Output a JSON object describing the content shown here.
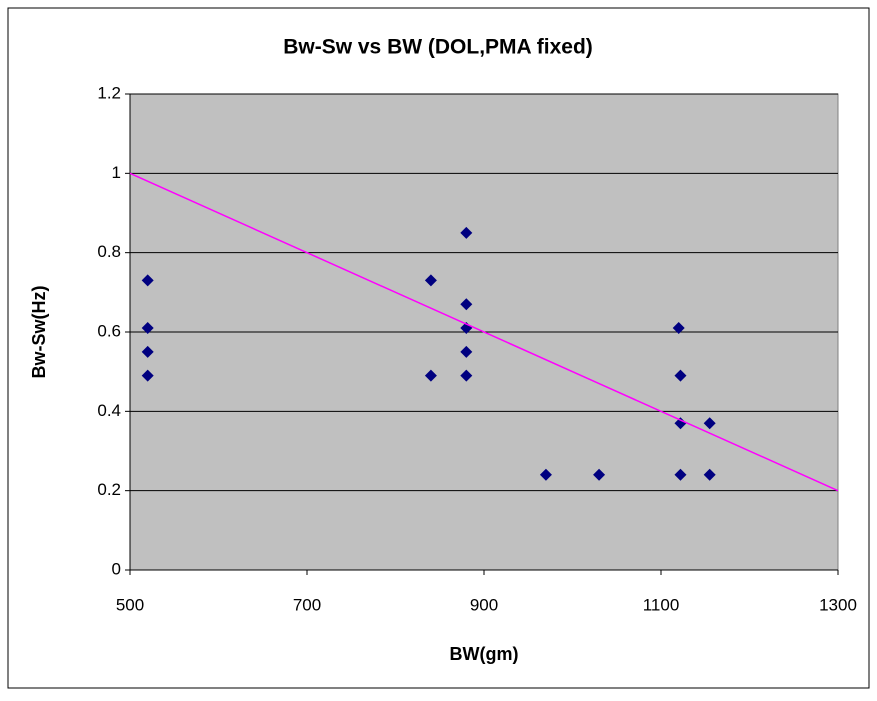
{
  "chart_data": {
    "type": "scatter",
    "title": "Bw-Sw vs BW (DOL,PMA fixed)",
    "x_label": "BW(gm)",
    "y_label": "Bw-Sw(Hz)",
    "series": [
      {
        "color": "#000080",
        "x": [
          520,
          520,
          520,
          520,
          840,
          840,
          880,
          880,
          880,
          880,
          880,
          970,
          1030,
          1120,
          1122,
          1122,
          1122,
          1155,
          1155
        ],
        "values": [
          0.73,
          0.61,
          0.55,
          0.49,
          0.73,
          0.49,
          0.85,
          0.67,
          0.61,
          0.55,
          0.49,
          0.24,
          0.24,
          0.61,
          0.49,
          0.37,
          0.24,
          0.37,
          0.24
        ]
      }
    ],
    "trendline": {
      "x": [
        500,
        1300
      ],
      "values": [
        1,
        0.2
      ],
      "color": "#ff00ff"
    },
    "xlim": [
      500,
      1300
    ],
    "xticks": [
      500,
      700,
      900,
      1100,
      1300
    ],
    "ylim": [
      0,
      1.2
    ],
    "yticks": [
      0,
      0.2,
      0.4,
      0.6,
      0.8,
      1,
      1.2
    ],
    "grid": true,
    "plot_background": "#c0c0c0"
  }
}
